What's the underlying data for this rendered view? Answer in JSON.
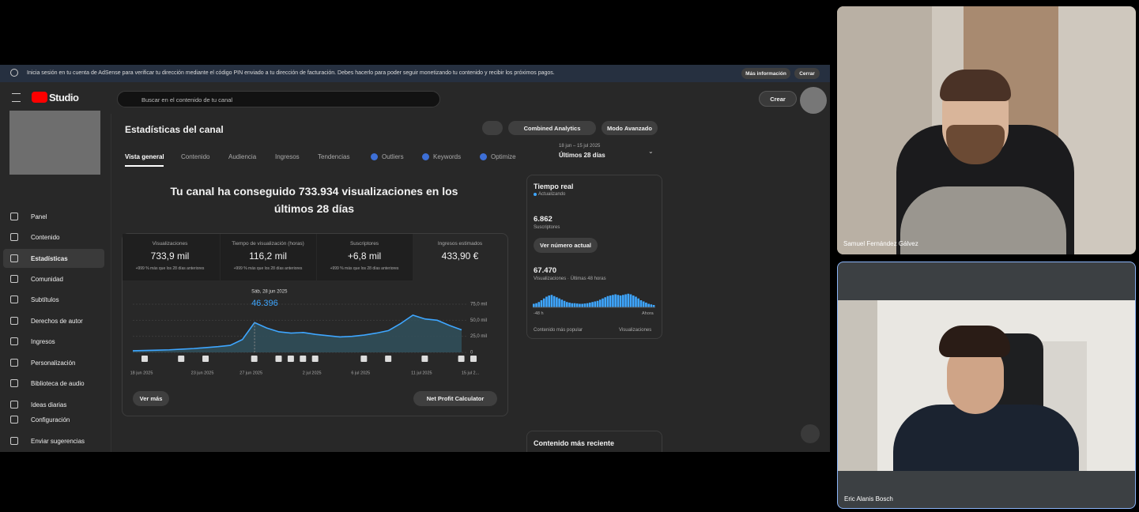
{
  "banner": {
    "text": "Inicia sesión en tu cuenta de AdSense para verificar tu dirección mediante el código PIN enviado a tu dirección de facturación. Debes hacerlo para poder seguir monetizando tu contenido y recibir los próximos pagos.",
    "more": "Más información",
    "close": "Cerrar"
  },
  "header": {
    "logo": "Studio",
    "search": "Buscar en el contenido de tu canal",
    "create": "Crear"
  },
  "sidebar": {
    "items": [
      "Panel",
      "Contenido",
      "Estadísticas",
      "Comunidad",
      "Subtítulos",
      "Derechos de autor",
      "Ingresos",
      "Personalización",
      "Biblioteca de audio",
      "Ideas diarias",
      "Configuración",
      "Enviar sugerencias"
    ],
    "active": 2
  },
  "page": {
    "title": "Estadísticas del canal",
    "buttons": [
      "Combined Analytics",
      "Modo Avanzado"
    ],
    "tabs": [
      "Vista general",
      "Contenido",
      "Audiencia",
      "Ingresos",
      "Tendencias",
      "Outliers",
      "Keywords",
      "Optimize"
    ],
    "date_range": "18 jun – 15 jul 2025",
    "period": "Últimos 28 días",
    "headline": "Tu canal ha conseguido 733.934 visualizaciones en los últimos 28 días"
  },
  "metrics": [
    {
      "label": "Visualizaciones",
      "value": "733,9 mil",
      "change": "+999 % más que los 28 días anteriores"
    },
    {
      "label": "Tiempo de visualización (horas)",
      "value": "116,2 mil",
      "change": "+999 % más que los 28 días anteriores"
    },
    {
      "label": "Suscriptores",
      "value": "+6,8 mil",
      "change": "+999 % más que los 28 días anteriores"
    },
    {
      "label": "Ingresos estimados",
      "value": "433,90 €"
    }
  ],
  "views_chart": {
    "type": "line",
    "color": "#3ea6ff",
    "categories": [
      "18 jun 2025",
      null,
      null,
      null,
      null,
      "23 jun 2025",
      null,
      null,
      null,
      "27 jun 2025",
      null,
      null,
      null,
      null,
      "2 jul 2025",
      null,
      null,
      null,
      "6 jul 2025",
      null,
      null,
      null,
      null,
      "11 jul 2025",
      null,
      null,
      null,
      "15 jul 2..."
    ],
    "values": [
      2500,
      3000,
      3500,
      4000,
      5000,
      6000,
      7500,
      9000,
      11000,
      20000,
      46396,
      38000,
      32000,
      30000,
      31000,
      28000,
      26000,
      24000,
      25000,
      27000,
      30000,
      34000,
      45000,
      58000,
      52000,
      50000,
      42000,
      35000
    ],
    "ylim": [
      0,
      75000
    ],
    "yticks": [
      0,
      {
        "value": 25000,
        "label": "25,0 mil"
      },
      {
        "value": 50000,
        "label": "50,0 mil"
      },
      {
        "value": 75000,
        "label": "75,0 mil"
      }
    ],
    "tooltip": {
      "date": "Sáb, 28 jun 2025",
      "value": 46396,
      "label": "46.396"
    },
    "buttons": [
      "Ver más",
      "Net Profit Calculator"
    ]
  },
  "realtime": {
    "title": "Tiempo real",
    "status": "Actualizando",
    "subscribers": "6.862",
    "subscribers_label": "Suscriptores",
    "button": "Ver número actual",
    "views": "67.470",
    "views_label": "Visualizaciones · Últimas 48 horas",
    "chart": {
      "type": "bar",
      "color": "#3ea6ff",
      "values": [
        600,
        700,
        900,
        1200,
        1500,
        1800,
        2000,
        2100,
        1900,
        1700,
        1500,
        1300,
        1100,
        900,
        800,
        700,
        700,
        650,
        600,
        600,
        650,
        700,
        800,
        900,
        1000,
        1100,
        1300,
        1500,
        1700,
        1900,
        2000,
        2100,
        2200,
        2100,
        2000,
        2100,
        2200,
        2300,
        2200,
        2000,
        1800,
        1500,
        1200,
        1000,
        800,
        600,
        500,
        400
      ],
      "start": "-48 h",
      "end": "Ahora"
    },
    "footer": [
      "Contenido más popular",
      "Visualizaciones"
    ]
  },
  "latest": "Contenido más reciente",
  "participants": [
    "Samuel Fernández Gálvez",
    "Eric Alanis Bosch"
  ]
}
